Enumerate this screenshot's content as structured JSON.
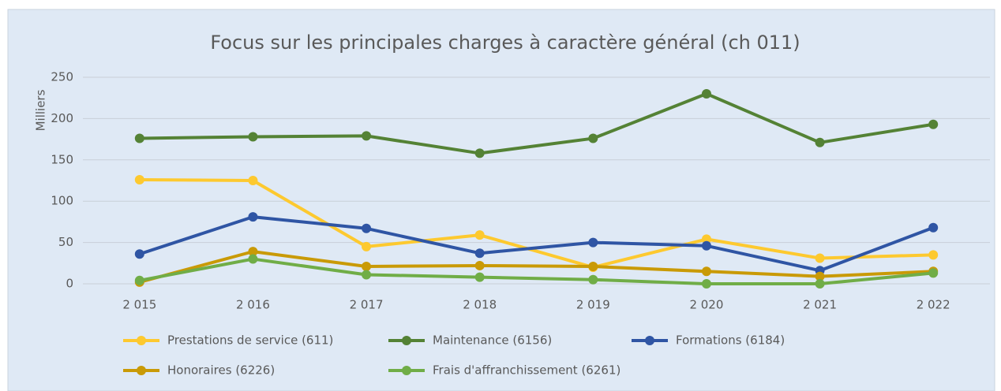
{
  "chart_data": {
    "type": "line",
    "title": "Focus sur les principales charges à caractère général (ch 011)",
    "y_label": "Milliers",
    "categories": [
      "2 015",
      "2 016",
      "2 017",
      "2 018",
      "2 019",
      "2 020",
      "2 021",
      "2 022"
    ],
    "series": [
      {
        "name": "Prestations de service (611)",
        "color": "#fdc92f",
        "values": [
          126,
          125,
          45,
          59,
          20,
          54,
          31,
          35
        ]
      },
      {
        "name": "Maintenance (6156)",
        "color": "#548235",
        "values": [
          176,
          178,
          179,
          158,
          176,
          230,
          171,
          193
        ]
      },
      {
        "name": "Formations (6184)",
        "color": "#2f55a4",
        "values": [
          36,
          81,
          67,
          37,
          50,
          46,
          16,
          68
        ]
      },
      {
        "name": "Honoraires (6226)",
        "color": "#c99a06",
        "values": [
          2,
          39,
          21,
          22,
          21,
          15,
          9,
          15
        ]
      },
      {
        "name": "Frais d'affranchissement (6261)",
        "color": "#70ad47",
        "values": [
          4,
          30,
          11,
          8,
          5,
          0,
          0,
          13
        ]
      }
    ],
    "ylim": [
      0,
      250
    ],
    "yticks": [
      0,
      50,
      100,
      150,
      200,
      250
    ],
    "grid": true,
    "legend": "bottom"
  }
}
